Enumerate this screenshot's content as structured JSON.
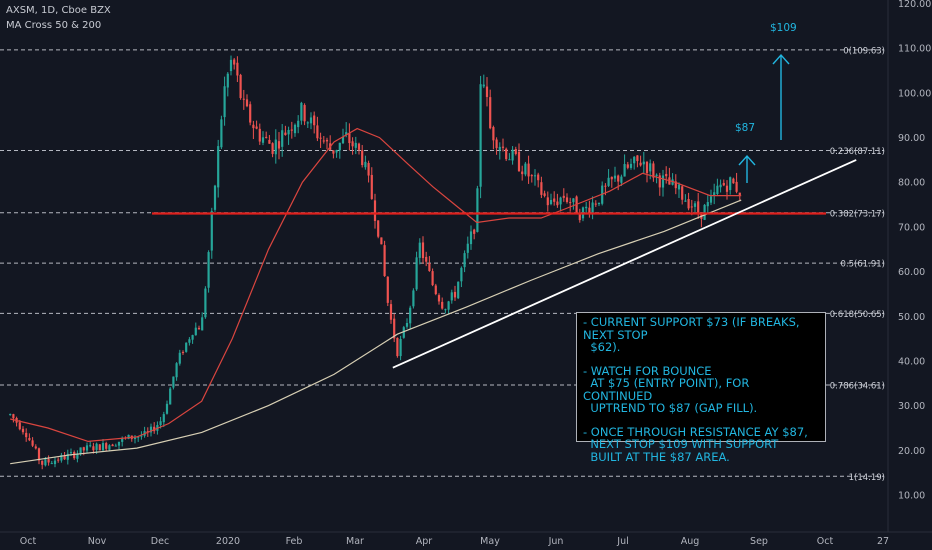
{
  "header": {
    "symbol_line": "AXSM, 1D, Cboe BZX",
    "indicator": "MA Cross 50 & 200"
  },
  "colors": {
    "background": "#131722",
    "up": "#26a69a",
    "down": "#ef5350",
    "ma50": "#d9453f",
    "ma200": "#d7cfb4",
    "support": "#e0201c",
    "annotation": "#22b6e0",
    "trendline": "#ffffff"
  },
  "chart_data": {
    "type": "candlestick",
    "x_labels": [
      "Oct",
      "Nov",
      "Dec",
      "2020",
      "Feb",
      "Mar",
      "Apr",
      "May",
      "Jun",
      "Jul",
      "Aug",
      "Sep",
      "Oct",
      "27"
    ],
    "y_ticks": [
      "10.00",
      "20.00",
      "30.00",
      "40.00",
      "50.00",
      "60.00",
      "70.00",
      "80.00",
      "90.00",
      "100.00",
      "110.00",
      "120.00"
    ],
    "ylim": [
      5,
      121
    ],
    "fib_levels": [
      {
        "label": "0(109.63)",
        "value": 109.63
      },
      {
        "label": "0.236(87.11)",
        "value": 87.11
      },
      {
        "label": "0.382(73.17)",
        "value": 73.17
      },
      {
        "label": "0.5(61.91)",
        "value": 61.91
      },
      {
        "label": "0.618(50.65)",
        "value": 50.65
      },
      {
        "label": "0.786(34.61)",
        "value": 34.61
      },
      {
        "label": "1(14.19)",
        "value": 14.19
      }
    ],
    "support_level": 73,
    "targets": [
      {
        "label": "$87",
        "value": 87
      },
      {
        "label": "$109",
        "value": 109
      }
    ],
    "price_path": [
      {
        "d": "2019-09-23",
        "p": 28
      },
      {
        "d": "2019-09-30",
        "p": 24
      },
      {
        "d": "2019-10-07",
        "p": 17
      },
      {
        "d": "2019-10-14",
        "p": 18
      },
      {
        "d": "2019-10-21",
        "p": 19
      },
      {
        "d": "2019-10-28",
        "p": 20.5
      },
      {
        "d": "2019-11-04",
        "p": 21
      },
      {
        "d": "2019-11-11",
        "p": 22
      },
      {
        "d": "2019-11-18",
        "p": 23
      },
      {
        "d": "2019-11-25",
        "p": 23.5
      },
      {
        "d": "2019-12-02",
        "p": 27
      },
      {
        "d": "2019-12-09",
        "p": 40
      },
      {
        "d": "2019-12-16",
        "p": 47
      },
      {
        "d": "2019-12-20",
        "p": 48
      },
      {
        "d": "2019-12-30",
        "p": 100
      },
      {
        "d": "2020-01-03",
        "p": 108
      },
      {
        "d": "2020-01-08",
        "p": 97
      },
      {
        "d": "2020-01-15",
        "p": 91
      },
      {
        "d": "2020-01-22",
        "p": 88
      },
      {
        "d": "2020-01-29",
        "p": 92
      },
      {
        "d": "2020-02-05",
        "p": 96
      },
      {
        "d": "2020-02-12",
        "p": 91
      },
      {
        "d": "2020-02-19",
        "p": 87
      },
      {
        "d": "2020-02-26",
        "p": 90
      },
      {
        "d": "2020-03-04",
        "p": 86
      },
      {
        "d": "2020-03-08",
        "p": 78
      },
      {
        "d": "2020-03-12",
        "p": 68
      },
      {
        "d": "2020-03-16",
        "p": 52
      },
      {
        "d": "2020-03-20",
        "p": 42
      },
      {
        "d": "2020-03-25",
        "p": 50
      },
      {
        "d": "2020-03-30",
        "p": 66
      },
      {
        "d": "2020-04-05",
        "p": 57
      },
      {
        "d": "2020-04-10",
        "p": 52
      },
      {
        "d": "2020-04-15",
        "p": 55
      },
      {
        "d": "2020-04-20",
        "p": 64
      },
      {
        "d": "2020-04-25",
        "p": 72
      },
      {
        "d": "2020-04-27",
        "p": 108
      },
      {
        "d": "2020-05-01",
        "p": 92
      },
      {
        "d": "2020-05-08",
        "p": 87
      },
      {
        "d": "2020-05-15",
        "p": 84
      },
      {
        "d": "2020-05-22",
        "p": 80
      },
      {
        "d": "2020-05-29",
        "p": 75
      },
      {
        "d": "2020-06-05",
        "p": 77
      },
      {
        "d": "2020-06-12",
        "p": 73
      },
      {
        "d": "2020-06-19",
        "p": 76
      },
      {
        "d": "2020-06-26",
        "p": 80
      },
      {
        "d": "2020-07-03",
        "p": 83
      },
      {
        "d": "2020-07-10",
        "p": 85
      },
      {
        "d": "2020-07-17",
        "p": 81
      },
      {
        "d": "2020-07-24",
        "p": 79
      },
      {
        "d": "2020-07-31",
        "p": 76
      },
      {
        "d": "2020-08-05",
        "p": 73
      },
      {
        "d": "2020-08-10",
        "p": 75
      },
      {
        "d": "2020-08-14",
        "p": 79
      },
      {
        "d": "2020-08-19",
        "p": 80
      },
      {
        "d": "2020-08-24",
        "p": 78
      }
    ],
    "ma50": [
      {
        "d": "2019-09-23",
        "v": 27
      },
      {
        "d": "2019-10-10",
        "v": 25
      },
      {
        "d": "2019-10-28",
        "v": 22
      },
      {
        "d": "2019-11-20",
        "v": 23
      },
      {
        "d": "2019-12-05",
        "v": 26
      },
      {
        "d": "2019-12-20",
        "v": 31
      },
      {
        "d": "2020-01-03",
        "v": 45
      },
      {
        "d": "2020-01-20",
        "v": 65
      },
      {
        "d": "2020-02-05",
        "v": 80
      },
      {
        "d": "2020-02-20",
        "v": 89
      },
      {
        "d": "2020-03-02",
        "v": 92
      },
      {
        "d": "2020-03-12",
        "v": 90
      },
      {
        "d": "2020-03-25",
        "v": 84
      },
      {
        "d": "2020-04-05",
        "v": 79
      },
      {
        "d": "2020-04-15",
        "v": 75
      },
      {
        "d": "2020-04-25",
        "v": 71
      },
      {
        "d": "2020-05-10",
        "v": 72
      },
      {
        "d": "2020-05-25",
        "v": 72
      },
      {
        "d": "2020-06-05",
        "v": 74
      },
      {
        "d": "2020-06-25",
        "v": 78
      },
      {
        "d": "2020-07-10",
        "v": 82
      },
      {
        "d": "2020-07-25",
        "v": 80
      },
      {
        "d": "2020-08-10",
        "v": 77
      },
      {
        "d": "2020-08-24",
        "v": 77
      }
    ],
    "ma200": [
      {
        "d": "2019-09-23",
        "v": 17
      },
      {
        "d": "2019-10-20",
        "v": 19
      },
      {
        "d": "2019-11-20",
        "v": 20.5
      },
      {
        "d": "2019-12-20",
        "v": 24
      },
      {
        "d": "2020-01-20",
        "v": 30
      },
      {
        "d": "2020-02-20",
        "v": 37
      },
      {
        "d": "2020-03-20",
        "v": 46
      },
      {
        "d": "2020-04-20",
        "v": 52
      },
      {
        "d": "2020-05-20",
        "v": 58
      },
      {
        "d": "2020-06-20",
        "v": 64
      },
      {
        "d": "2020-07-20",
        "v": 69
      },
      {
        "d": "2020-08-24",
        "v": 76
      }
    ],
    "trendline": [
      {
        "d": "2020-03-18",
        "v": 38.5
      },
      {
        "d": "2020-10-15",
        "v": 85
      }
    ]
  },
  "note": {
    "p1": "- CURRENT SUPPORT $73 (IF BREAKS, NEXT STOP\n  $62).",
    "p2": "- WATCH FOR BOUNCE\n  AT $75 (ENTRY POINT), FOR CONTINUED\n  UPTREND TO $87 (GAP FILL).",
    "p3": "- ONCE THROUGH RESISTANCE AY $87,\n  NEXT STOP $109 WITH SUPPORT\n  BUILT AT THE $87 AREA."
  }
}
